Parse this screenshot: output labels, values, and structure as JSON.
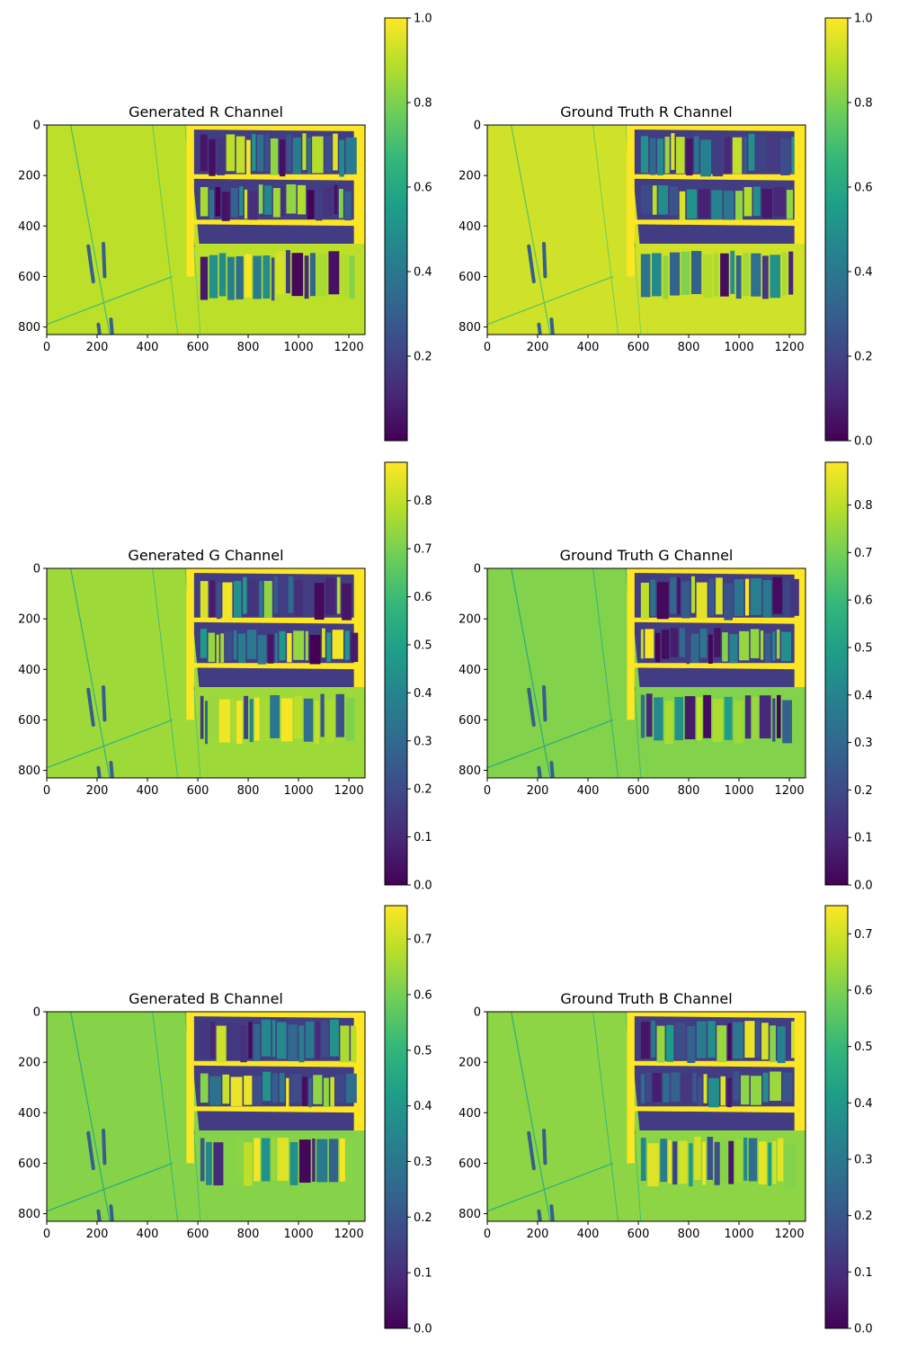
{
  "figure": {
    "colormap": "viridis",
    "viridis_stops": [
      "#440154",
      "#482878",
      "#3e4989",
      "#31688e",
      "#26828e",
      "#1f9e89",
      "#35b779",
      "#6ece58",
      "#b5de2b",
      "#fde725"
    ]
  },
  "chart_data": [
    {
      "type": "heatmap",
      "title": "Generated R Channel",
      "xlabel": "",
      "ylabel": "",
      "xticks": [
        "0",
        "200",
        "400",
        "600",
        "800",
        "1000",
        "1200"
      ],
      "yticks": [
        "0",
        "200",
        "400",
        "600",
        "800"
      ],
      "xlim": [
        0,
        1264
      ],
      "ylim": [
        830,
        0
      ],
      "colorbar": {
        "vmin": 0.0,
        "vmax": 1.0,
        "ticks": [
          "0.2",
          "0.4",
          "0.6",
          "0.8",
          "1.0"
        ]
      },
      "wall_level": 0.9,
      "shelf_level": 1.0
    },
    {
      "type": "heatmap",
      "title": "Ground Truth R Channel",
      "xlabel": "",
      "ylabel": "",
      "xticks": [
        "0",
        "200",
        "400",
        "600",
        "800",
        "1000",
        "1200"
      ],
      "yticks": [
        "0",
        "200",
        "400",
        "600",
        "800"
      ],
      "xlim": [
        0,
        1264
      ],
      "ylim": [
        830,
        0
      ],
      "colorbar": {
        "vmin": 0.0,
        "vmax": 1.0,
        "ticks": [
          "0.0",
          "0.2",
          "0.4",
          "0.6",
          "0.8",
          "1.0"
        ]
      },
      "wall_level": 0.93,
      "shelf_level": 1.0
    },
    {
      "type": "heatmap",
      "title": "Generated G Channel",
      "xlabel": "",
      "ylabel": "",
      "xticks": [
        "0",
        "200",
        "400",
        "600",
        "800",
        "1000",
        "1200"
      ],
      "yticks": [
        "0",
        "200",
        "400",
        "600",
        "800"
      ],
      "xlim": [
        0,
        1264
      ],
      "ylim": [
        830,
        0
      ],
      "colorbar": {
        "vmin": 0.0,
        "vmax": 0.88,
        "ticks": [
          "0.0",
          "0.1",
          "0.2",
          "0.3",
          "0.4",
          "0.5",
          "0.6",
          "0.7",
          "0.8"
        ]
      },
      "wall_level": 0.75,
      "shelf_level": 0.88
    },
    {
      "type": "heatmap",
      "title": "Ground Truth G Channel",
      "xlabel": "",
      "ylabel": "",
      "xticks": [
        "0",
        "200",
        "400",
        "600",
        "800",
        "1000",
        "1200"
      ],
      "yticks": [
        "0",
        "200",
        "400",
        "600",
        "800"
      ],
      "xlim": [
        0,
        1264
      ],
      "ylim": [
        830,
        0
      ],
      "colorbar": {
        "vmin": 0.0,
        "vmax": 0.89,
        "ticks": [
          "0.0",
          "0.1",
          "0.2",
          "0.3",
          "0.4",
          "0.5",
          "0.6",
          "0.7",
          "0.8"
        ]
      },
      "wall_level": 0.72,
      "shelf_level": 0.89
    },
    {
      "type": "heatmap",
      "title": "Generated B Channel",
      "xlabel": "",
      "ylabel": "",
      "xticks": [
        "0",
        "200",
        "400",
        "600",
        "800",
        "1000",
        "1200"
      ],
      "yticks": [
        "0",
        "200",
        "400",
        "600",
        "800"
      ],
      "xlim": [
        0,
        1264
      ],
      "ylim": [
        830,
        0
      ],
      "colorbar": {
        "vmin": 0.0,
        "vmax": 0.76,
        "ticks": [
          "0.0",
          "0.1",
          "0.2",
          "0.3",
          "0.4",
          "0.5",
          "0.6",
          "0.7"
        ]
      },
      "wall_level": 0.62,
      "shelf_level": 0.76
    },
    {
      "type": "heatmap",
      "title": "Ground Truth B Channel",
      "xlabel": "",
      "ylabel": "",
      "xticks": [
        "0",
        "200",
        "400",
        "600",
        "800",
        "1000",
        "1200"
      ],
      "yticks": [
        "0",
        "200",
        "400",
        "600",
        "800"
      ],
      "xlim": [
        0,
        1264
      ],
      "ylim": [
        830,
        0
      ],
      "colorbar": {
        "vmin": 0.0,
        "vmax": 0.75,
        "ticks": [
          "0.0",
          "0.1",
          "0.2",
          "0.3",
          "0.4",
          "0.5",
          "0.6",
          "0.7"
        ]
      },
      "wall_level": 0.62,
      "shelf_level": 0.75
    }
  ]
}
